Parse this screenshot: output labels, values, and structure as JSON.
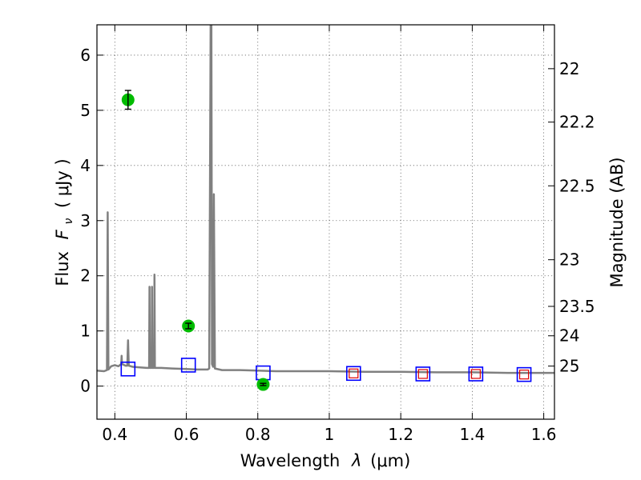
{
  "chart_data": {
    "type": "line",
    "xlabel_text": "Wavelength",
    "xlabel_symbol": "λ",
    "xlabel_unit": "(μm)",
    "ylabel_text": "Flux",
    "ylabel_symbol": "F",
    "ylabel_subscript": "ν",
    "ylabel_unit": "( μJy )",
    "y2label": "Magnitude (AB)",
    "xlim": [
      0.35,
      1.63
    ],
    "ylim": [
      -0.6,
      6.55
    ],
    "grid": true,
    "x_ticks": [
      {
        "value": 0.4,
        "label": "0.4"
      },
      {
        "value": 0.6,
        "label": "0.6"
      },
      {
        "value": 0.8,
        "label": "0.8"
      },
      {
        "value": 1.0,
        "label": "1"
      },
      {
        "value": 1.2,
        "label": "1.2"
      },
      {
        "value": 1.4,
        "label": "1.4"
      },
      {
        "value": 1.6,
        "label": "1.6"
      }
    ],
    "y_ticks": [
      {
        "value": 0,
        "label": "0"
      },
      {
        "value": 1,
        "label": "1"
      },
      {
        "value": 2,
        "label": "2"
      },
      {
        "value": 3,
        "label": "3"
      },
      {
        "value": 4,
        "label": "4"
      },
      {
        "value": 5,
        "label": "5"
      },
      {
        "value": 6,
        "label": "6"
      }
    ],
    "y2_ticks": [
      {
        "value": 22,
        "label": "22"
      },
      {
        "value": 22.2,
        "label": "22.2"
      },
      {
        "value": 22.5,
        "label": "22.5"
      },
      {
        "value": 23,
        "label": "23"
      },
      {
        "value": 23.5,
        "label": "23.5"
      },
      {
        "value": 24,
        "label": "24"
      },
      {
        "value": 25,
        "label": "25"
      }
    ],
    "spectrum": {
      "color": "#808080",
      "points": [
        [
          0.35,
          0.28
        ],
        [
          0.37,
          0.27
        ],
        [
          0.378,
          0.29
        ],
        [
          0.38,
          3.15
        ],
        [
          0.382,
          0.3
        ],
        [
          0.39,
          0.36
        ],
        [
          0.4,
          0.38
        ],
        [
          0.41,
          0.36
        ],
        [
          0.418,
          0.4
        ],
        [
          0.419,
          0.55
        ],
        [
          0.42,
          0.4
        ],
        [
          0.43,
          0.37
        ],
        [
          0.435,
          0.37
        ],
        [
          0.437,
          0.83
        ],
        [
          0.439,
          0.37
        ],
        [
          0.45,
          0.35
        ],
        [
          0.47,
          0.34
        ],
        [
          0.49,
          0.33
        ],
        [
          0.496,
          0.33
        ],
        [
          0.497,
          1.8
        ],
        [
          0.498,
          0.33
        ],
        [
          0.503,
          0.33
        ],
        [
          0.504,
          1.8
        ],
        [
          0.505,
          0.33
        ],
        [
          0.51,
          0.33
        ],
        [
          0.511,
          2.02
        ],
        [
          0.512,
          0.33
        ],
        [
          0.53,
          0.33
        ],
        [
          0.56,
          0.32
        ],
        [
          0.6,
          0.31
        ],
        [
          0.63,
          0.3
        ],
        [
          0.65,
          0.3
        ],
        [
          0.66,
          0.3
        ],
        [
          0.664,
          0.32
        ],
        [
          0.666,
          3.35
        ],
        [
          0.668,
          6.55
        ],
        [
          0.67,
          6.55
        ],
        [
          0.672,
          0.4
        ],
        [
          0.675,
          0.35
        ],
        [
          0.677,
          3.48
        ],
        [
          0.68,
          0.32
        ],
        [
          0.7,
          0.29
        ],
        [
          0.75,
          0.29
        ],
        [
          0.8,
          0.28
        ],
        [
          0.85,
          0.27
        ],
        [
          0.9,
          0.27
        ],
        [
          1.0,
          0.27
        ],
        [
          1.1,
          0.26
        ],
        [
          1.2,
          0.26
        ],
        [
          1.3,
          0.25
        ],
        [
          1.4,
          0.25
        ],
        [
          1.5,
          0.24
        ],
        [
          1.63,
          0.24
        ]
      ]
    },
    "photometry_green": {
      "color": "#00bb00",
      "points": [
        {
          "x": 0.437,
          "y": 5.19,
          "yerr": 0.17
        },
        {
          "x": 0.606,
          "y": 1.09,
          "yerr": 0.05
        },
        {
          "x": 0.815,
          "y": 0.03,
          "yerr": 0.02
        }
      ]
    },
    "model_blue_squares": {
      "color": "#0000ff",
      "points": [
        {
          "x": 0.437,
          "y": 0.31
        },
        {
          "x": 0.606,
          "y": 0.38
        },
        {
          "x": 0.815,
          "y": 0.24
        },
        {
          "x": 1.068,
          "y": 0.23
        },
        {
          "x": 1.262,
          "y": 0.22
        },
        {
          "x": 1.41,
          "y": 0.22
        },
        {
          "x": 1.545,
          "y": 0.21
        }
      ]
    },
    "model_red_squares": {
      "color": "#dd0000",
      "points": [
        {
          "x": 1.068,
          "y": 0.23
        },
        {
          "x": 1.262,
          "y": 0.22
        },
        {
          "x": 1.41,
          "y": 0.22
        },
        {
          "x": 1.545,
          "y": 0.21
        }
      ]
    }
  }
}
